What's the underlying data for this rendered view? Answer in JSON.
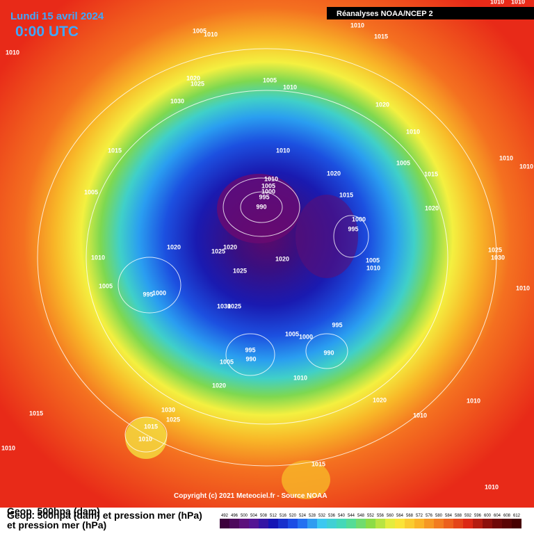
{
  "header": {
    "date": "Lundi 15 avril 2024",
    "time": "0:00 UTC",
    "source": "Réanalyses NOAA/NCEP 2"
  },
  "isobar_labels": [
    "1010",
    "1010",
    "1010",
    "1015",
    "1005",
    "1010",
    "1010",
    "1005",
    "1010",
    "1020",
    "1025",
    "1030",
    "1020",
    "1010",
    "1015",
    "1010",
    "1010",
    "1005",
    "1015",
    "1010",
    "1020",
    "1010",
    "1005",
    "1000",
    "995",
    "990",
    "1015",
    "1005",
    "1020",
    "1000",
    "995",
    "1020",
    "1020",
    "1025",
    "1025",
    "1030",
    "1010",
    "1020",
    "1005",
    "1010",
    "1025",
    "1005",
    "1010",
    "1000",
    "995",
    "1030",
    "1025",
    "995",
    "1005",
    "1000",
    "995",
    "990",
    "990",
    "1005",
    "1010",
    "1020",
    "1020",
    "1010",
    "1010",
    "1015",
    "1030",
    "1025",
    "1015",
    "1010",
    "1010",
    "1015",
    "1010"
  ],
  "copyright": "Copyright (c) 2021 Meteociel.fr - Source NOAA",
  "legend": {
    "line1": "Geop. 500hpa (dam)",
    "line2": "Geop. 500hpa (dam) et pression mer (hPa)",
    "line3": "et pression mer (hPa)",
    "scale": [
      "492",
      "496",
      "500",
      "504",
      "508",
      "512",
      "516",
      "520",
      "524",
      "528",
      "532",
      "536",
      "540",
      "544",
      "548",
      "552",
      "556",
      "560",
      "564",
      "568",
      "572",
      "576",
      "580",
      "584",
      "588",
      "592",
      "596",
      "600",
      "604",
      "608",
      "612"
    ]
  }
}
